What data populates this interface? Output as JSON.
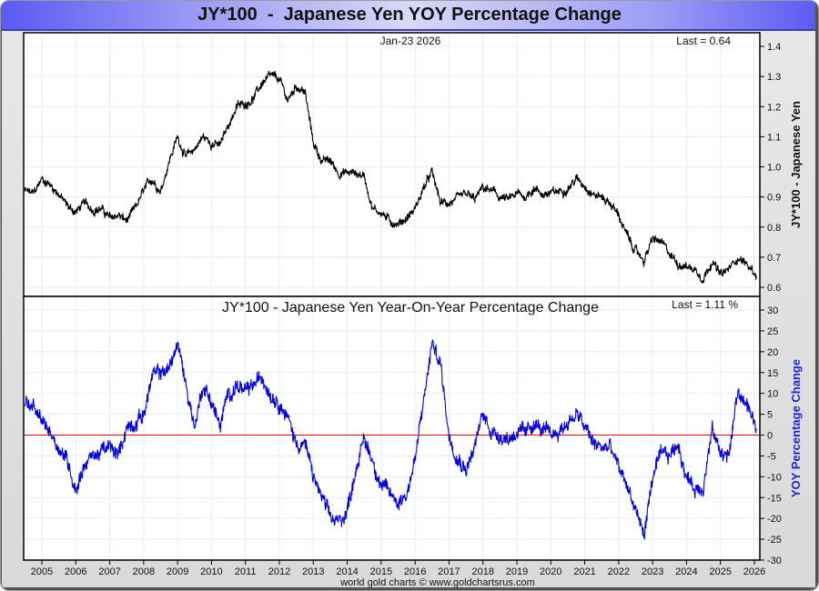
{
  "window": {
    "title": "JY*100  -  Japanese Yen YOY Percentage Change",
    "footer": "world gold charts © www.goldchartsrus.com"
  },
  "colors": {
    "price_line": "#000000",
    "yoy_line": "#0000ee",
    "zero_line": "#dd0000",
    "grid": "#e3eef8",
    "yoy_label": "#2020e0"
  },
  "chart_data": [
    {
      "type": "line",
      "title": "JY*100 - Japanese Yen",
      "date_label": "Jan-23  2026",
      "last_label": "Last = 0.64",
      "ylabel": "JY*100  -  Japanese Yen",
      "ylim": [
        0.6,
        1.4
      ],
      "yticks": [
        "0.6",
        "0.7",
        "0.8",
        "0.9",
        "1.0",
        "1.1",
        "1.2",
        "1.3",
        "1.4"
      ],
      "grid": true,
      "x": [
        2004.5,
        2004.75,
        2005.0,
        2005.25,
        2005.5,
        2005.75,
        2006.0,
        2006.25,
        2006.5,
        2006.75,
        2007.0,
        2007.25,
        2007.5,
        2007.75,
        2008.0,
        2008.25,
        2008.5,
        2008.75,
        2009.0,
        2009.25,
        2009.5,
        2009.75,
        2010.0,
        2010.25,
        2010.5,
        2010.75,
        2011.0,
        2011.25,
        2011.5,
        2011.75,
        2012.0,
        2012.25,
        2012.5,
        2012.75,
        2013.0,
        2013.25,
        2013.5,
        2013.75,
        2014.0,
        2014.25,
        2014.5,
        2014.75,
        2015.0,
        2015.25,
        2015.5,
        2015.75,
        2016.0,
        2016.25,
        2016.5,
        2016.75,
        2017.0,
        2017.25,
        2017.5,
        2017.75,
        2018.0,
        2018.25,
        2018.5,
        2018.75,
        2019.0,
        2019.25,
        2019.5,
        2019.75,
        2020.0,
        2020.25,
        2020.5,
        2020.75,
        2021.0,
        2021.25,
        2021.5,
        2021.75,
        2022.0,
        2022.25,
        2022.5,
        2022.75,
        2023.0,
        2023.25,
        2023.5,
        2023.75,
        2024.0,
        2024.25,
        2024.5,
        2024.75,
        2025.0,
        2025.25,
        2025.5,
        2025.75,
        2026.06
      ],
      "values": [
        0.92,
        0.91,
        0.96,
        0.94,
        0.91,
        0.87,
        0.85,
        0.88,
        0.86,
        0.86,
        0.83,
        0.84,
        0.82,
        0.86,
        0.92,
        0.96,
        0.92,
        1.02,
        1.1,
        1.03,
        1.06,
        1.1,
        1.08,
        1.07,
        1.14,
        1.2,
        1.21,
        1.23,
        1.28,
        1.3,
        1.29,
        1.22,
        1.27,
        1.25,
        1.08,
        1.02,
        1.02,
        0.98,
        0.98,
        0.98,
        0.97,
        0.86,
        0.85,
        0.82,
        0.81,
        0.83,
        0.86,
        0.93,
        0.98,
        0.88,
        0.88,
        0.89,
        0.91,
        0.89,
        0.93,
        0.92,
        0.9,
        0.89,
        0.91,
        0.9,
        0.93,
        0.91,
        0.91,
        0.92,
        0.93,
        0.96,
        0.94,
        0.91,
        0.9,
        0.88,
        0.84,
        0.77,
        0.72,
        0.69,
        0.76,
        0.75,
        0.71,
        0.68,
        0.67,
        0.66,
        0.63,
        0.69,
        0.64,
        0.66,
        0.7,
        0.68,
        0.64
      ]
    },
    {
      "type": "line",
      "title": "JY*100  -  Japanese Yen Year-On-Year Percentage Change",
      "last_label": "Last = 1.11 %",
      "ylabel": "YOY Percentage Change",
      "ylim": [
        -30,
        30
      ],
      "yticks": [
        "-30",
        "-25",
        "-20",
        "-15",
        "-10",
        "-5",
        "0",
        "5",
        "10",
        "15",
        "20",
        "25",
        "30"
      ],
      "grid": true,
      "reference_line": 0,
      "xlabel_ticks": [
        "2005",
        "2006",
        "2007",
        "2008",
        "2009",
        "2010",
        "2011",
        "2012",
        "2013",
        "2014",
        "2015",
        "2016",
        "2017",
        "2018",
        "2019",
        "2020",
        "2021",
        "2022",
        "2023",
        "2024",
        "2025",
        "2026"
      ],
      "x": [
        2004.5,
        2004.75,
        2005.0,
        2005.25,
        2005.5,
        2005.75,
        2006.0,
        2006.25,
        2006.5,
        2006.75,
        2007.0,
        2007.25,
        2007.5,
        2007.75,
        2008.0,
        2008.25,
        2008.5,
        2008.75,
        2009.0,
        2009.25,
        2009.5,
        2009.75,
        2010.0,
        2010.25,
        2010.5,
        2010.75,
        2011.0,
        2011.25,
        2011.5,
        2011.75,
        2012.0,
        2012.25,
        2012.5,
        2012.75,
        2013.0,
        2013.25,
        2013.5,
        2013.75,
        2014.0,
        2014.25,
        2014.5,
        2014.75,
        2015.0,
        2015.25,
        2015.5,
        2015.75,
        2016.0,
        2016.25,
        2016.5,
        2016.75,
        2017.0,
        2017.25,
        2017.5,
        2017.75,
        2018.0,
        2018.25,
        2018.5,
        2018.75,
        2019.0,
        2019.25,
        2019.5,
        2019.75,
        2020.0,
        2020.25,
        2020.5,
        2020.75,
        2021.0,
        2021.25,
        2021.5,
        2021.75,
        2022.0,
        2022.25,
        2022.5,
        2022.75,
        2023.0,
        2023.25,
        2023.5,
        2023.75,
        2024.0,
        2024.25,
        2024.5,
        2024.75,
        2025.0,
        2025.25,
        2025.5,
        2025.75,
        2026.06
      ],
      "values": [
        8,
        6,
        3,
        1,
        -3,
        -6,
        -13,
        -7,
        -5,
        -4,
        -3,
        -5,
        2,
        3,
        5,
        14,
        15,
        16,
        22,
        12,
        2,
        12,
        8,
        2,
        10,
        12,
        10,
        12,
        14,
        10,
        8,
        4,
        -2,
        -2,
        -10,
        -15,
        -20,
        -21,
        -18,
        -8,
        -1,
        -6,
        -12,
        -14,
        -16,
        -14,
        -6,
        8,
        22,
        17,
        0,
        -5,
        -8,
        -3,
        5,
        1,
        0,
        -1,
        1,
        0,
        3,
        1,
        0,
        1,
        3,
        5,
        2,
        -2,
        -3,
        -3,
        -8,
        -12,
        -18,
        -24,
        -10,
        -5,
        -5,
        -2,
        -10,
        -13,
        -12,
        1,
        -4,
        -5,
        10,
        8,
        1.11
      ]
    }
  ]
}
